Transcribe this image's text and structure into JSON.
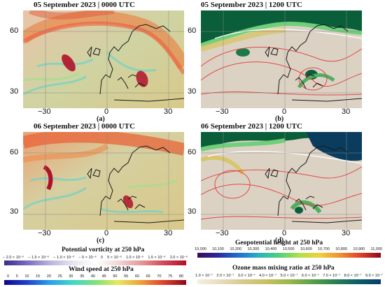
{
  "panels": [
    {
      "id": "a",
      "title": "05 September 2023 | 0000 UTC",
      "label": "(a)"
    },
    {
      "id": "b",
      "title": "05 September 2023 | 1200 UTC",
      "label": "(b)"
    },
    {
      "id": "c",
      "title": "06 September 2023 | 0000 UTC",
      "label": "(c)"
    },
    {
      "id": "d",
      "title": "06 September 2023 | 1200 UTC",
      "label": "(d)"
    }
  ],
  "axes": {
    "y_top": "60",
    "y_bottom": "30",
    "x_left": "−30",
    "x_mid": "0",
    "x_right": "30"
  },
  "colorbars": {
    "pv": {
      "title": "Potential vorticity at 250 hPa",
      "ticks": [
        "− 2.0 × 10⁻⁶",
        "− 1.5 × 10⁻⁶",
        "− 1.0 × 10⁻⁶",
        "− 5 × 10⁻⁶",
        "0",
        "5 × 10⁻⁶",
        "1.0 × 10⁻⁶",
        "1.5 × 10⁻⁶",
        "2.0 × 10⁻⁶"
      ]
    },
    "wind": {
      "title": "Wind speed at 250 hPa",
      "ticks": [
        "0",
        "5",
        "10",
        "15",
        "20",
        "25",
        "30",
        "35",
        "40",
        "45",
        "50",
        "55",
        "60",
        "65",
        "70",
        "75",
        "80"
      ]
    },
    "geo": {
      "title": "Geopotential height at 250 hPa",
      "ticks": [
        "10,000",
        "10,100",
        "10,200",
        "10,300",
        "10,400",
        "10,500",
        "10,600",
        "10,700",
        "10,800",
        "10,900",
        "11,000"
      ]
    },
    "ozone": {
      "title": "Ozone mass mixing ratio at 250 hPa",
      "ticks": [
        "1.0 × 10⁻⁷",
        "2.0 × 10⁻⁷",
        "3.0 × 10⁻⁷",
        "4.0 × 10⁻⁷",
        "5.0 × 10⁻⁷",
        "6.0 × 10⁻⁷",
        "7.0 × 10⁻⁷",
        "8.0 × 10⁻⁷",
        "9.0 × 10⁻⁷"
      ]
    }
  },
  "colors": {
    "map_base_left": "#d8c98a",
    "map_base_right": "#dcd2c4",
    "jet": "#e8874a",
    "pv_core": "#b0102a",
    "ozone_high": "#0a5e3a",
    "coast": "#1a1a1a",
    "geo_contour": "#e04848"
  }
}
